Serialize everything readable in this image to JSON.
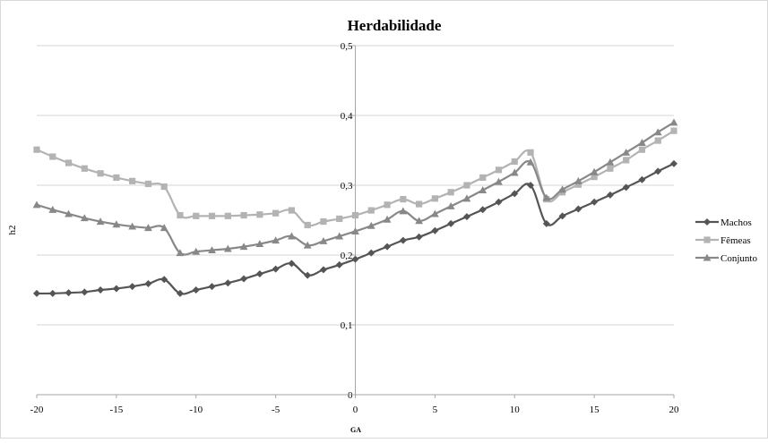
{
  "chart_data": {
    "type": "line",
    "title": "Herdabilidade",
    "xlabel": "GA",
    "ylabel": "h2",
    "xlim": [
      -20,
      20
    ],
    "ylim": [
      0,
      0.5
    ],
    "x_ticks": [
      -20,
      -15,
      -10,
      -5,
      0,
      5,
      10,
      15,
      20
    ],
    "x_tick_labels": [
      "-20",
      "-15",
      "-10",
      "-5",
      "0",
      "5",
      "10",
      "15",
      "20"
    ],
    "y_ticks": [
      0,
      0.1,
      0.2,
      0.3,
      0.4,
      0.5
    ],
    "y_tick_labels": [
      "0",
      "0,1",
      "0,2",
      "0,3",
      "0,4",
      "0,5"
    ],
    "grid": "horizontal",
    "legend_position": "right",
    "x": [
      -20,
      -19,
      -18,
      -17,
      -16,
      -15,
      -14,
      -13,
      -12,
      -11,
      -10,
      -9,
      -8,
      -7,
      -6,
      -5,
      -4,
      -3,
      -2,
      -1,
      0,
      1,
      2,
      3,
      4,
      5,
      6,
      7,
      8,
      9,
      10,
      11,
      12,
      13,
      14,
      15,
      16,
      17,
      18,
      19,
      20
    ],
    "series": [
      {
        "name": "Machos",
        "marker": "diamond",
        "color": "#555555",
        "values": [
          0.145,
          0.145,
          0.146,
          0.147,
          0.15,
          0.152,
          0.155,
          0.159,
          0.165,
          0.145,
          0.15,
          0.155,
          0.16,
          0.166,
          0.173,
          0.18,
          0.188,
          0.171,
          0.179,
          0.186,
          0.194,
          0.203,
          0.212,
          0.221,
          0.226,
          0.235,
          0.245,
          0.255,
          0.265,
          0.276,
          0.288,
          0.3,
          0.245,
          0.256,
          0.266,
          0.276,
          0.286,
          0.297,
          0.308,
          0.32,
          0.331
        ]
      },
      {
        "name": "Fêmeas",
        "marker": "square",
        "color": "#b3b3b3",
        "values": [
          0.351,
          0.341,
          0.332,
          0.324,
          0.317,
          0.311,
          0.306,
          0.302,
          0.298,
          0.257,
          0.256,
          0.256,
          0.256,
          0.257,
          0.258,
          0.26,
          0.264,
          0.243,
          0.248,
          0.252,
          0.257,
          0.264,
          0.272,
          0.28,
          0.273,
          0.281,
          0.29,
          0.3,
          0.311,
          0.322,
          0.334,
          0.347,
          0.28,
          0.29,
          0.301,
          0.312,
          0.324,
          0.336,
          0.351,
          0.364,
          0.378
        ]
      },
      {
        "name": "Conjunto",
        "marker": "triangle",
        "color": "#888888",
        "values": [
          0.272,
          0.265,
          0.259,
          0.253,
          0.248,
          0.244,
          0.241,
          0.239,
          0.239,
          0.203,
          0.205,
          0.207,
          0.209,
          0.212,
          0.216,
          0.221,
          0.227,
          0.214,
          0.22,
          0.227,
          0.234,
          0.242,
          0.251,
          0.263,
          0.249,
          0.259,
          0.27,
          0.281,
          0.293,
          0.305,
          0.318,
          0.333,
          0.282,
          0.294,
          0.306,
          0.319,
          0.333,
          0.347,
          0.361,
          0.376,
          0.39
        ]
      }
    ]
  }
}
